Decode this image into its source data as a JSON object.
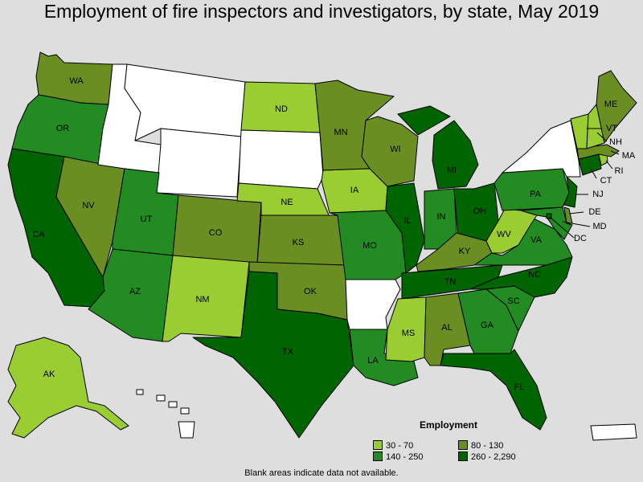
{
  "title": "Employment of fire inspectors and investigators, by state, May 2019",
  "legend": {
    "title": "Employment",
    "items": [
      {
        "range": "30 - 70",
        "color": "#9acd32"
      },
      {
        "range": "80 - 130",
        "color": "#6b8e23"
      },
      {
        "range": "140 - 250",
        "color": "#228b22"
      },
      {
        "range": "260 - 2,290",
        "color": "#006400"
      }
    ]
  },
  "footnote": "Blank areas indicate data not available.",
  "colors": {
    "no_data": "#ffffff",
    "background": "#dedede"
  },
  "states": {
    "WA": {
      "label": "WA",
      "bin": 1
    },
    "OR": {
      "label": "OR",
      "bin": 2
    },
    "CA": {
      "label": "CA",
      "bin": 3
    },
    "NV": {
      "label": "NV",
      "bin": 1
    },
    "ID": {
      "label": "",
      "bin": null
    },
    "MT": {
      "label": "",
      "bin": null
    },
    "WY": {
      "label": "",
      "bin": null
    },
    "UT": {
      "label": "UT",
      "bin": 2
    },
    "AZ": {
      "label": "AZ",
      "bin": 2
    },
    "CO": {
      "label": "CO",
      "bin": 1
    },
    "NM": {
      "label": "NM",
      "bin": 0
    },
    "ND": {
      "label": "ND",
      "bin": 0
    },
    "SD": {
      "label": "",
      "bin": null
    },
    "NE": {
      "label": "NE",
      "bin": 0
    },
    "KS": {
      "label": "KS",
      "bin": 1
    },
    "OK": {
      "label": "OK",
      "bin": 1
    },
    "TX": {
      "label": "TX",
      "bin": 3
    },
    "MN": {
      "label": "MN",
      "bin": 1
    },
    "IA": {
      "label": "IA",
      "bin": 0
    },
    "MO": {
      "label": "MO",
      "bin": 2
    },
    "AR": {
      "label": "",
      "bin": null
    },
    "LA": {
      "label": "LA",
      "bin": 2
    },
    "WI": {
      "label": "WI",
      "bin": 1
    },
    "IL": {
      "label": "IL",
      "bin": 3
    },
    "MI": {
      "label": "MI",
      "bin": 3
    },
    "IN": {
      "label": "IN",
      "bin": 2
    },
    "OH": {
      "label": "OH",
      "bin": 3
    },
    "KY": {
      "label": "KY",
      "bin": 1
    },
    "TN": {
      "label": "TN",
      "bin": 3
    },
    "MS": {
      "label": "MS",
      "bin": 0
    },
    "AL": {
      "label": "AL",
      "bin": 1
    },
    "GA": {
      "label": "GA",
      "bin": 2
    },
    "FL": {
      "label": "FL",
      "bin": 3
    },
    "SC": {
      "label": "SC",
      "bin": 2
    },
    "NC": {
      "label": "NC",
      "bin": 3
    },
    "VA": {
      "label": "VA",
      "bin": 2
    },
    "WV": {
      "label": "WV",
      "bin": 0
    },
    "PA": {
      "label": "PA",
      "bin": 2
    },
    "NY": {
      "label": "",
      "bin": null
    },
    "NJ": {
      "label": "NJ",
      "bin": 3
    },
    "DE": {
      "label": "DE",
      "bin": 1
    },
    "MD": {
      "label": "MD",
      "bin": 2
    },
    "DC": {
      "label": "DC",
      "bin": 3
    },
    "CT": {
      "label": "CT",
      "bin": 3
    },
    "RI": {
      "label": "RI",
      "bin": 0
    },
    "MA": {
      "label": "MA",
      "bin": 1
    },
    "VT": {
      "label": "VT",
      "bin": 0
    },
    "NH": {
      "label": "NH",
      "bin": 0
    },
    "ME": {
      "label": "ME",
      "bin": 1
    },
    "AK": {
      "label": "AK",
      "bin": 0
    },
    "HI": {
      "label": "",
      "bin": null
    },
    "PR": {
      "label": "",
      "bin": null
    }
  }
}
